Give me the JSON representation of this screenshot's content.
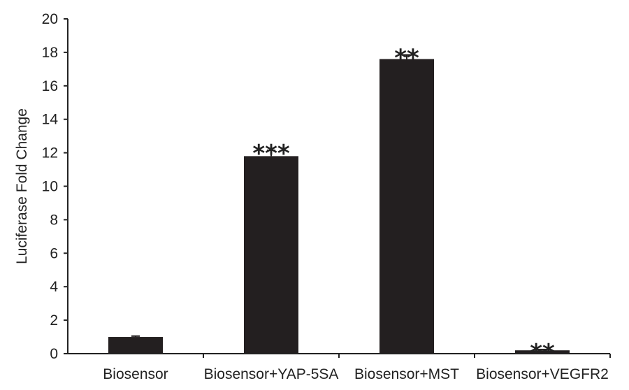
{
  "chart_data": {
    "type": "bar",
    "title": "",
    "xlabel": "",
    "ylabel": "Luciferase Fold Change",
    "ylim": [
      0,
      20
    ],
    "yticks": [
      0,
      2,
      4,
      6,
      8,
      10,
      12,
      14,
      16,
      18,
      20
    ],
    "ytick_labels": [
      "0",
      "2",
      "4",
      "6",
      "8",
      "10",
      "12",
      "14",
      "16",
      "18",
      "20"
    ],
    "grid": false,
    "legend": "none",
    "categories": [
      "Biosensor",
      "Biosensor+YAP-5SA",
      "Biosensor+MST",
      "Biosensor+VEGFR2"
    ],
    "values": [
      1.0,
      11.8,
      17.6,
      0.2
    ],
    "errors": [
      0.05,
      0.35,
      0.25,
      0.05
    ],
    "significance": [
      "",
      "***",
      "**",
      "**"
    ],
    "bar_color": "#231f20",
    "axis_color": "#222222"
  }
}
